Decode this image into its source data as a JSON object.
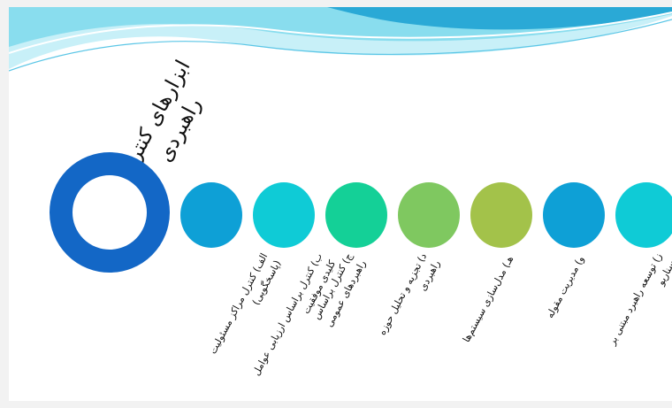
{
  "diagram": {
    "title": "ابزارهای کنترل راهبردی",
    "colors": {
      "ring": "#1367c6",
      "wave_light": "#c8f0f8",
      "wave_mid": "#7ed9ec",
      "wave_dark": "#2aa9d6"
    },
    "nodes": [
      {
        "label": "الف) کنترل مراکز مسئولیت (پاسخگویی)",
        "color": "#0ea0d6"
      },
      {
        "label": "ب) کنترل براساس ارزیابی عوامل کلیدی موفقیت",
        "color": "#0fcbd6"
      },
      {
        "label": "ج) کنترل براساس راهبردهای عمومی",
        "color": "#14d097"
      },
      {
        "label": "د) تجزیه و تحلیل حوزه راهبردی",
        "color": "#7fc860"
      },
      {
        "label": "هـ) مدل‌سازی سیستم‌ها",
        "color": "#a3c24a"
      },
      {
        "label": "و) مدیریت مقوله",
        "color": "#0ea0d6"
      },
      {
        "label": "ز) توسعه راهبرد مبتنی بر سناریو",
        "color": "#0fcbd6"
      }
    ]
  }
}
